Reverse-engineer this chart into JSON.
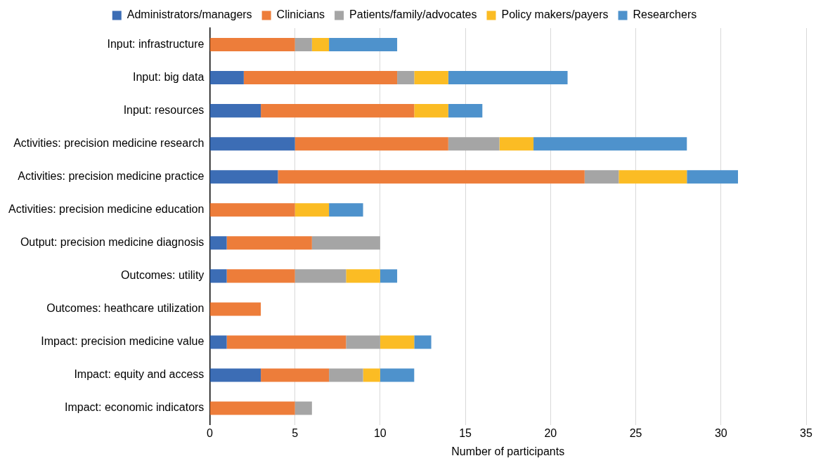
{
  "chart_data": {
    "type": "bar",
    "orientation": "horizontal",
    "stacked": true,
    "xlabel": "Number of participants",
    "categories": [
      "Input: infrastructure",
      "Input: big data",
      "Input: resources",
      "Activities: precision medicine research",
      "Activities: precision medicine practice",
      "Activities: precision medicine education",
      "Output: precision medicine diagnosis",
      "Outcomes: utility",
      "Outcomes: heathcare utilization",
      "Impact: precision medicine value",
      "Impact: equity and access",
      "Impact: economic indicators"
    ],
    "series": [
      {
        "name": "Administrators/managers",
        "color": "#3c6db5",
        "values": [
          0,
          2,
          3,
          5,
          4,
          0,
          1,
          1,
          0,
          1,
          3,
          0
        ]
      },
      {
        "name": "Clinicians",
        "color": "#ed7d3a",
        "values": [
          5,
          9,
          9,
          9,
          18,
          5,
          5,
          4,
          3,
          7,
          4,
          5
        ]
      },
      {
        "name": "Patients/family/advocates",
        "color": "#a5a5a5",
        "values": [
          1,
          1,
          0,
          3,
          2,
          0,
          4,
          3,
          0,
          2,
          2,
          1
        ]
      },
      {
        "name": "Policy makers/payers",
        "color": "#fbbc24",
        "values": [
          1,
          2,
          2,
          2,
          4,
          2,
          0,
          2,
          0,
          2,
          1,
          0
        ]
      },
      {
        "name": "Researchers",
        "color": "#4e92cc",
        "values": [
          4,
          7,
          2,
          9,
          3,
          2,
          0,
          1,
          0,
          1,
          2,
          0
        ]
      }
    ],
    "xlim": [
      0,
      35
    ],
    "xticks": [
      0,
      5,
      10,
      15,
      20,
      25,
      30,
      35
    ],
    "grid": "x",
    "legend": "top"
  }
}
